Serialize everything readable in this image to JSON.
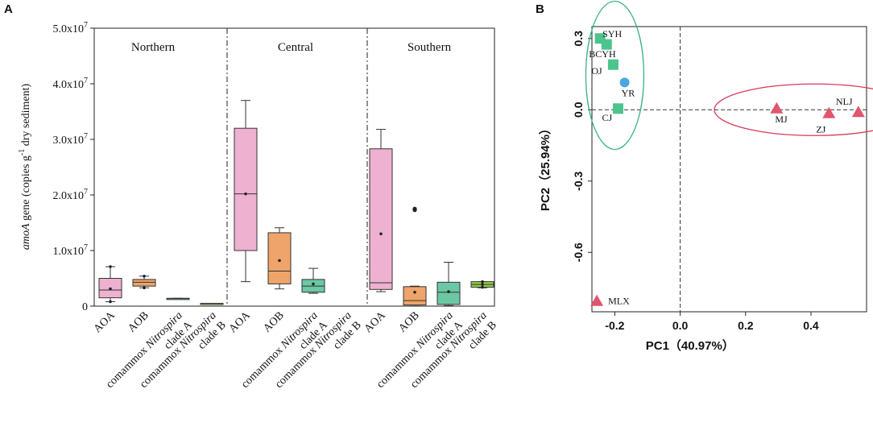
{
  "chart_data": [
    {
      "panel": "A",
      "type": "box",
      "ylabel_prefix": "amoA",
      "ylabel_rest": " gene (copies g",
      "ylabel_sup": "-1",
      "ylabel_end": " dry sediment)",
      "ylim": [
        0,
        50000000
      ],
      "yticks": [
        {
          "value": 0,
          "label": "0"
        },
        {
          "value": 10000000,
          "label": "1.0x10",
          "exp": "7"
        },
        {
          "value": 20000000,
          "label": "2.0x10",
          "exp": "7"
        },
        {
          "value": 30000000,
          "label": "3.0x10",
          "exp": "7"
        },
        {
          "value": 40000000,
          "label": "4.0x10",
          "exp": "7"
        },
        {
          "value": 50000000,
          "label": "5.0x10",
          "exp": "7"
        }
      ],
      "regions": [
        "Northern",
        "Central",
        "Southern"
      ],
      "categories": [
        {
          "line1": "AOA",
          "line1_italic": "",
          "line2": ""
        },
        {
          "line1": "AOB",
          "line1_italic": "",
          "line2": ""
        },
        {
          "line1": "comammox ",
          "line1_italic": "Nitrospira",
          "line2": "clade A"
        },
        {
          "line1": "comammox ",
          "line1_italic": "Nitrospira",
          "line2": "clade B"
        }
      ],
      "colors": {
        "AOA": "#eeb1cf",
        "AOB": "#eea46a",
        "cladeA": "#6cc7a4",
        "cladeB": "#90cf4a"
      },
      "boxes": [
        {
          "region": "Northern",
          "group": "AOA",
          "min": 800000,
          "q1": 1500000,
          "median": 2900000,
          "q3": 5000000,
          "max": 7100000,
          "points": [
            800000,
            3100000,
            7100000
          ]
        },
        {
          "region": "Northern",
          "group": "AOB",
          "min": 3300000,
          "q1": 3600000,
          "median": 4300000,
          "q3": 4800000,
          "max": 5400000,
          "points": [
            3300000,
            5400000
          ]
        },
        {
          "region": "Northern",
          "group": "cladeA",
          "min": 1400000,
          "q1": 1400000,
          "median": 1400000,
          "q3": 1400000,
          "max": 1400000,
          "points": []
        },
        {
          "region": "Northern",
          "group": "cladeB",
          "min": 500000,
          "q1": 500000,
          "median": 500000,
          "q3": 500000,
          "max": 500000,
          "points": []
        },
        {
          "region": "Central",
          "group": "AOA",
          "min": 4400000,
          "q1": 10000000,
          "median": 20200000,
          "q3": 32000000,
          "max": 37000000,
          "points": [
            20200000
          ]
        },
        {
          "region": "Central",
          "group": "AOB",
          "min": 3100000,
          "q1": 4000000,
          "median": 6300000,
          "q3": 13200000,
          "max": 14100000,
          "points": [
            8200000
          ]
        },
        {
          "region": "Central",
          "group": "cladeA",
          "min": 2300000,
          "q1": 2500000,
          "median": 3600000,
          "q3": 4800000,
          "max": 6800000,
          "points": [
            4000000
          ]
        },
        {
          "region": "Southern",
          "group": "AOA",
          "min": 2600000,
          "q1": 3000000,
          "median": 4200000,
          "q3": 28300000,
          "max": 31800000,
          "points": [
            13000000
          ]
        },
        {
          "region": "Southern",
          "group": "AOB",
          "min": 200000,
          "q1": 200000,
          "median": 1000000,
          "q3": 3500000,
          "max": 3600000,
          "points": [
            2500000
          ],
          "outliers": [
            17300000,
            17500000
          ]
        },
        {
          "region": "Southern",
          "group": "cladeA",
          "min": 100000,
          "q1": 300000,
          "median": 2500000,
          "q3": 4300000,
          "max": 7900000,
          "points": [
            2600000
          ]
        },
        {
          "region": "Southern",
          "group": "cladeB",
          "min": 3300000,
          "q1": 3400000,
          "median": 3900000,
          "q3": 4400000,
          "max": 4400000,
          "points": [
            3400000,
            3900000,
            4400000
          ]
        }
      ]
    },
    {
      "panel": "B",
      "type": "scatter",
      "xlabel": "PC1（40.97%）",
      "ylabel": "PC2（25.94%）",
      "xlim": [
        -0.27,
        0.57
      ],
      "ylim": [
        -0.85,
        0.35
      ],
      "xticks": [
        {
          "value": -0.2,
          "label": "-0.2"
        },
        {
          "value": 0.0,
          "label": "0.0"
        },
        {
          "value": 0.2,
          "label": "0.2"
        },
        {
          "value": 0.4,
          "label": "0.4"
        }
      ],
      "yticks": [
        {
          "value": 0.3,
          "label": "0.3"
        },
        {
          "value": 0.0,
          "label": "0.0"
        },
        {
          "value": -0.3,
          "label": "-0.3"
        },
        {
          "value": -0.6,
          "label": "-0.6"
        }
      ],
      "points": [
        {
          "label": "SYH",
          "x": -0.245,
          "y": 0.3,
          "shape": "square",
          "color": "#4cc48d"
        },
        {
          "label": "BCYH",
          "x": -0.225,
          "y": 0.275,
          "shape": "square",
          "color": "#4cc48d"
        },
        {
          "label": "OJ",
          "x": -0.205,
          "y": 0.19,
          "shape": "square",
          "color": "#4cc48d"
        },
        {
          "label": "YR",
          "x": -0.17,
          "y": 0.115,
          "shape": "circle",
          "color": "#4aa8e0"
        },
        {
          "label": "CJ",
          "x": -0.19,
          "y": 0.005,
          "shape": "square",
          "color": "#4cc48d"
        },
        {
          "label": "MJ",
          "x": 0.295,
          "y": 0.005,
          "shape": "triangle",
          "color": "#e0566c"
        },
        {
          "label": "ZJ",
          "x": 0.455,
          "y": -0.015,
          "shape": "triangle",
          "color": "#e0566c"
        },
        {
          "label": "NLJ",
          "x": 0.545,
          "y": -0.01,
          "shape": "triangle",
          "color": "#e0566c"
        },
        {
          "label": "MLX",
          "x": -0.255,
          "y": -0.805,
          "shape": "triangle",
          "color": "#e0566c"
        }
      ]
    }
  ]
}
